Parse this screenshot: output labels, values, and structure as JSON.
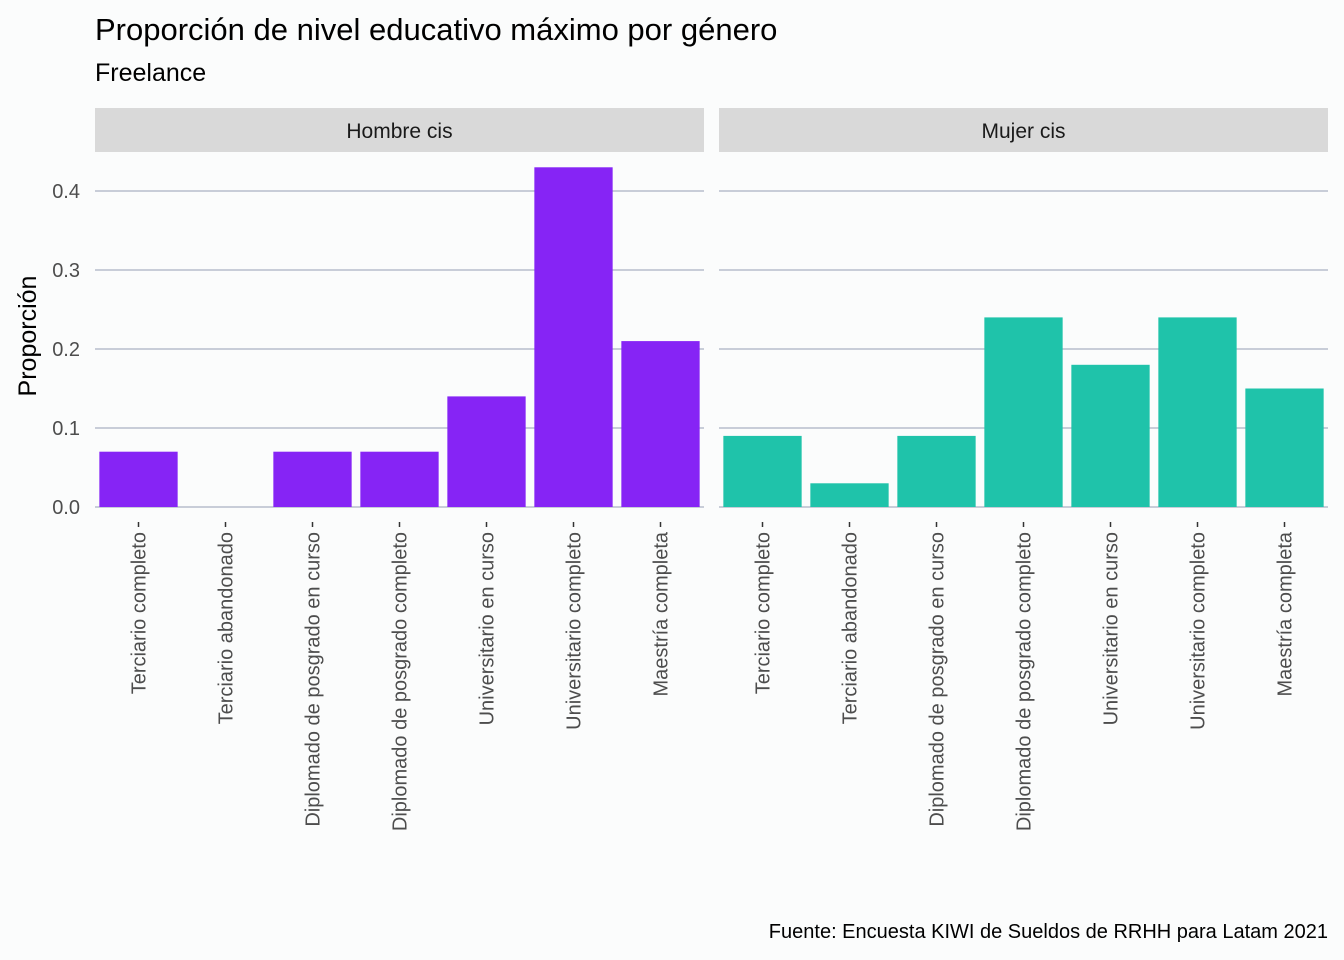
{
  "title": "Proporción de nivel educativo máximo por género",
  "subtitle": "Freelance",
  "caption": "Fuente: Encuesta KIWI de Sueldos de RRHH para Latam 2021",
  "colors": {
    "background": "#fbfcfc",
    "strip": "#d9d9d9",
    "grid": "#a9b1c2",
    "axis_text": "#4d4d4d",
    "hombre": "#8624f5",
    "mujer": "#1fc3aa"
  },
  "chart_data": {
    "type": "bar",
    "ylabel": "Proporción",
    "xlabel": "",
    "ylim": [
      0,
      0.45
    ],
    "yticks": [
      0.0,
      0.1,
      0.2,
      0.3,
      0.4
    ],
    "ytick_labels": [
      "0.0",
      "0.1",
      "0.2",
      "0.3",
      "0.4"
    ],
    "grid": "horizontal",
    "categories": [
      "Terciario completo",
      "Terciario abandonado",
      "Diplomado de posgrado en curso",
      "Diplomado de posgrado completo",
      "Universitario en curso",
      "Universitario completo",
      "Maestría completa"
    ],
    "facets": [
      {
        "name": "Hombre cis",
        "color": "#8624f5",
        "values": [
          0.07,
          0.0,
          0.07,
          0.07,
          0.14,
          0.43,
          0.21
        ]
      },
      {
        "name": "Mujer cis",
        "color": "#1fc3aa",
        "values": [
          0.09,
          0.03,
          0.09,
          0.24,
          0.18,
          0.24,
          0.15
        ]
      }
    ]
  }
}
